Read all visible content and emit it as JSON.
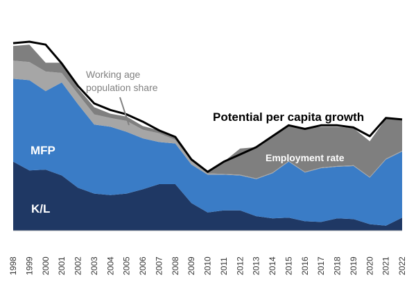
{
  "chart_data": {
    "type": "area",
    "title": "",
    "xlabel": "",
    "ylabel": "",
    "x": [
      "1998",
      "1999",
      "2000",
      "2001",
      "2002",
      "2003",
      "2004",
      "2005",
      "2006",
      "2007",
      "2008",
      "2009",
      "2010",
      "2011",
      "2012",
      "2013",
      "2014",
      "2015",
      "2016",
      "2017",
      "2018",
      "2019",
      "2020",
      "2021",
      "2022"
    ],
    "ylim": [
      0,
      2.6
    ],
    "grid": false,
    "series": [
      {
        "name": "K/L",
        "color": "#1f3864",
        "values": [
          0.95,
          0.83,
          0.84,
          0.76,
          0.59,
          0.51,
          0.49,
          0.51,
          0.57,
          0.64,
          0.64,
          0.38,
          0.25,
          0.28,
          0.28,
          0.2,
          0.17,
          0.18,
          0.13,
          0.12,
          0.17,
          0.16,
          0.09,
          0.07,
          0.18
        ]
      },
      {
        "name": "MFP",
        "color": "#3a7cc6",
        "values": [
          1.14,
          1.24,
          1.08,
          1.28,
          1.15,
          0.95,
          0.94,
          0.85,
          0.7,
          0.58,
          0.56,
          0.53,
          0.52,
          0.49,
          0.48,
          0.51,
          0.62,
          0.77,
          0.67,
          0.74,
          0.71,
          0.73,
          0.64,
          0.91,
          0.91
        ]
      },
      {
        "name": "Working age population share",
        "color": "#a6a6a6",
        "values": [
          0.25,
          0.25,
          0.27,
          0.13,
          0.14,
          0.14,
          0.12,
          0.15,
          0.12,
          0.12,
          0.05,
          0.05,
          0.02,
          0.01,
          0.01,
          0.01,
          0.01,
          0.01,
          0.01,
          0.01,
          0.01,
          0.01,
          0.01,
          0.01,
          0.01
        ]
      },
      {
        "name": "Employment rate",
        "color": "#7f7f7f",
        "values": [
          0.2,
          0.24,
          0.12,
          0.14,
          0.08,
          0.1,
          0.06,
          0.06,
          0.05,
          0.04,
          0.04,
          0.02,
          0.02,
          0.17,
          0.36,
          0.43,
          0.5,
          0.49,
          0.59,
          0.56,
          0.54,
          0.51,
          0.49,
          0.55,
          0.42
        ]
      }
    ],
    "line": {
      "name": "Potential per capita growth",
      "color": "#000000",
      "values": [
        2.58,
        2.6,
        2.56,
        2.3,
        1.99,
        1.75,
        1.66,
        1.6,
        1.5,
        1.38,
        1.29,
        0.98,
        0.81,
        0.95,
        1.05,
        1.15,
        1.3,
        1.45,
        1.4,
        1.45,
        1.45,
        1.42,
        1.3,
        1.55,
        1.53
      ]
    },
    "labels": {
      "kl": "K/L",
      "mfp": "MFP",
      "working_age_line1": "Working age",
      "working_age_line2": "population share",
      "employment": "Employment rate",
      "potential": "Potential per capita growth"
    }
  }
}
